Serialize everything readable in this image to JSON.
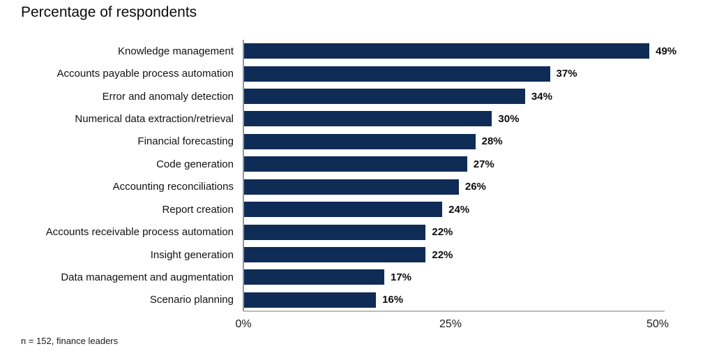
{
  "chart_data": {
    "type": "bar",
    "orientation": "horizontal",
    "title": "Percentage of respondents",
    "categories": [
      "Knowledge management",
      "Accounts payable process automation",
      "Error and anomaly detection",
      "Numerical data extraction/retrieval",
      "Financial forecasting",
      "Code generation",
      "Accounting reconciliations",
      "Report creation",
      "Accounts receivable process automation",
      "Insight generation",
      "Data management and augmentation",
      "Scenario planning"
    ],
    "values": [
      49,
      37,
      34,
      30,
      28,
      27,
      26,
      24,
      22,
      22,
      17,
      16
    ],
    "value_labels": [
      "49%",
      "37%",
      "34%",
      "30%",
      "28%",
      "27%",
      "26%",
      "24%",
      "22%",
      "22%",
      "17%",
      "16%"
    ],
    "xlabel": "",
    "ylabel": "",
    "xlim": [
      0,
      50
    ],
    "xticks": [
      {
        "value": 0,
        "label": "0%"
      },
      {
        "value": 25,
        "label": "25%"
      },
      {
        "value": 50,
        "label": "50%"
      }
    ],
    "bar_color": "#0e2c55",
    "grid": false,
    "legend": false
  },
  "footnote": "n = 152, finance leaders"
}
